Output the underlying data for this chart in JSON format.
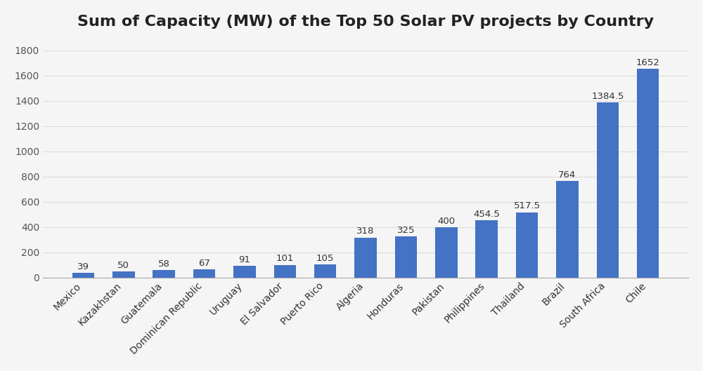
{
  "title": "Sum of Capacity (MW) of the Top 50 Solar PV projects by Country",
  "categories": [
    "Mexico",
    "Kazakhstan",
    "Guatemala",
    "Dominican Republic",
    "Uruguay",
    "El Salvador",
    "Puerto Rico",
    "Algeria",
    "Honduras",
    "Pakistan",
    "Philippines",
    "Thailand",
    "Brazil",
    "South Africa",
    "Chile"
  ],
  "values": [
    39,
    50,
    58,
    67,
    91,
    101,
    105,
    318,
    325,
    400,
    454.5,
    517.5,
    764,
    1384.5,
    1652
  ],
  "labels": [
    "39",
    "50",
    "58",
    "67",
    "91",
    "101",
    "105",
    "318",
    "325",
    "400",
    "454.5",
    "517.5",
    "764",
    "1384.5",
    "1652"
  ],
  "bar_color": "#4472C4",
  "background_color": "#F5F5F5",
  "plot_bg_color": "#F5F5F5",
  "grid_color": "#DDDDDD",
  "title_fontsize": 16,
  "label_fontsize": 9.5,
  "tick_fontsize": 10,
  "ylim": [
    0,
    1900
  ],
  "yticks": [
    0,
    200,
    400,
    600,
    800,
    1000,
    1200,
    1400,
    1600,
    1800
  ],
  "bar_width": 0.55
}
